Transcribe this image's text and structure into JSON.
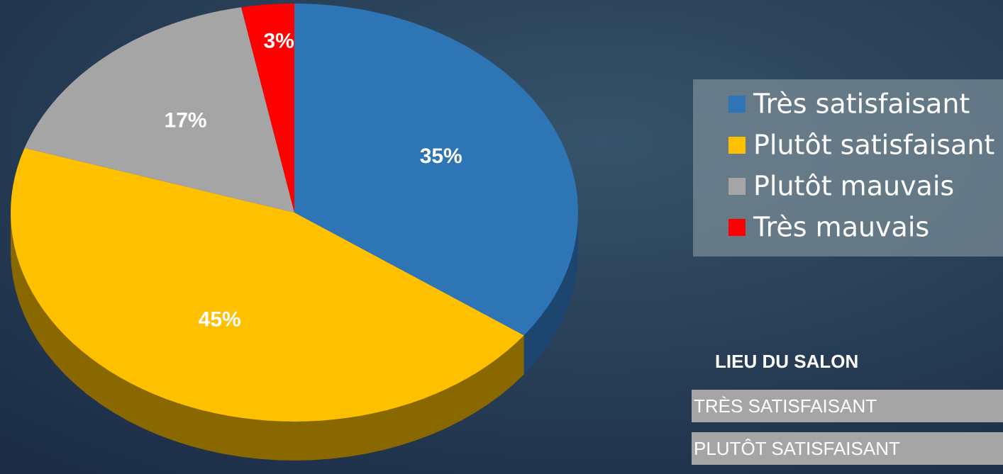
{
  "chart_data": {
    "type": "pie",
    "categories": [
      "Très satisfaisant",
      "Plutôt satisfaisant",
      "Plutôt mauvais",
      "Très mauvais"
    ],
    "values": [
      35,
      45,
      17,
      3
    ],
    "value_labels": [
      "35%",
      "45%",
      "17%",
      "3%"
    ],
    "colors": [
      "#2e75b6",
      "#ffc000",
      "#a5a5a5",
      "#ff0000"
    ],
    "side_colors": [
      "#1c4670",
      "#8a6800",
      "#5e5e5e",
      "#8a0000"
    ],
    "legend": "right"
  },
  "table": {
    "title": "LIEU DU SALON",
    "rows": [
      "TRÈS SATISFAISANT",
      "PLUTÔT SATISFAISANT"
    ]
  }
}
